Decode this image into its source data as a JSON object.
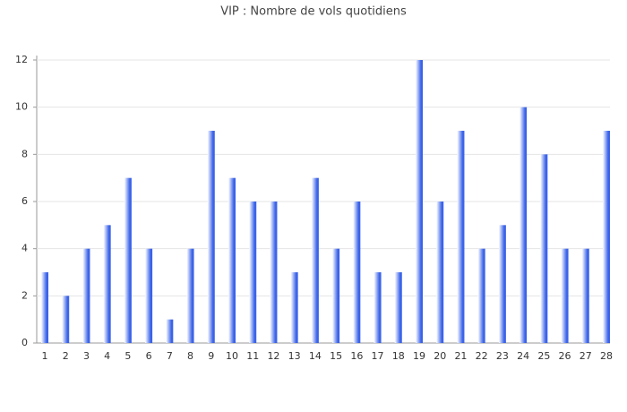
{
  "chart_data": {
    "type": "bar",
    "title": "VIP : Nombre de vols quotidiens",
    "categories": [
      "1",
      "2",
      "3",
      "4",
      "5",
      "6",
      "7",
      "8",
      "9",
      "10",
      "11",
      "12",
      "13",
      "14",
      "15",
      "16",
      "17",
      "18",
      "19",
      "20",
      "21",
      "22",
      "23",
      "24",
      "25",
      "26",
      "27",
      "28"
    ],
    "values": [
      3,
      2,
      4,
      5,
      7,
      4,
      1,
      4,
      9,
      7,
      6,
      6,
      3,
      7,
      4,
      6,
      3,
      3,
      12,
      6,
      9,
      4,
      5,
      10,
      8,
      4,
      4,
      9
    ],
    "color": "#3b63e8",
    "ylim": [
      0,
      12
    ],
    "yticks": [
      0,
      2,
      4,
      6,
      8,
      10,
      12
    ],
    "grid": true
  }
}
